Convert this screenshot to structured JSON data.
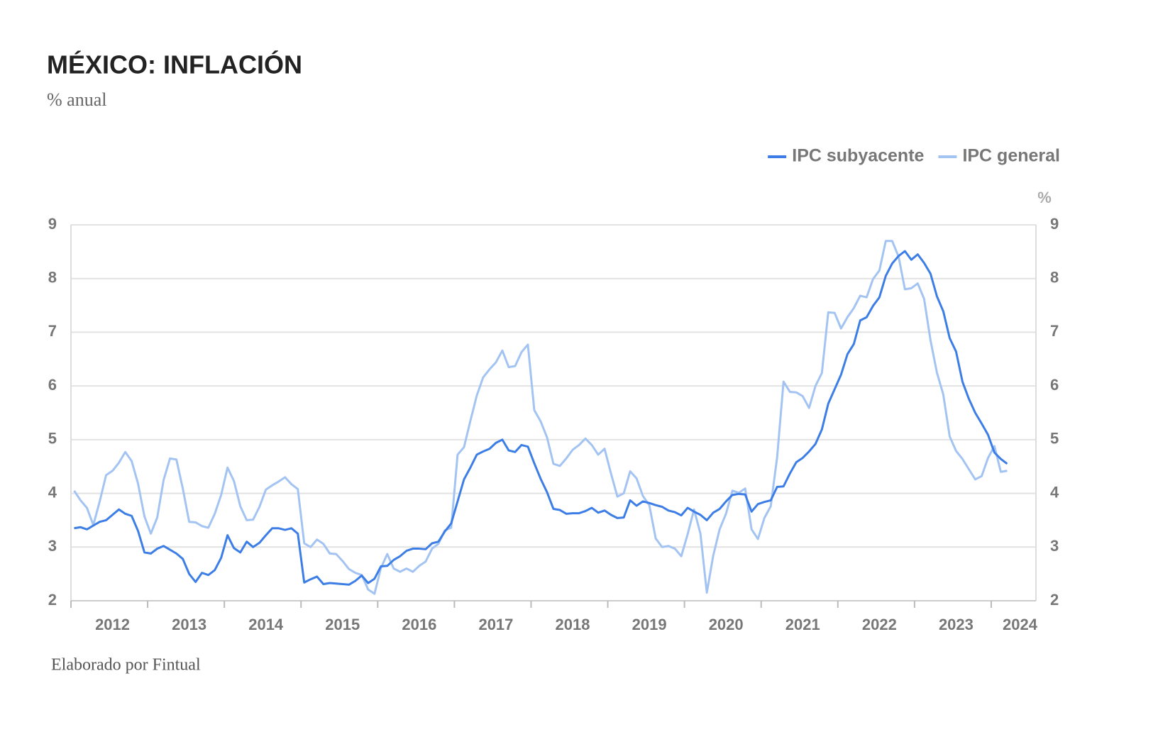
{
  "chart_data": {
    "type": "line",
    "title": "MÉXICO: INFLACIÓN",
    "subtitle": "% anual",
    "source": "Elaborado por Fintual",
    "y2_label": "%",
    "legend": "top-right",
    "grid": true,
    "ylim": [
      2,
      9
    ],
    "yticks": [
      2,
      3,
      4,
      5,
      6,
      7,
      8,
      9
    ],
    "y2lim": [
      2,
      9
    ],
    "y2ticks": [
      2,
      3,
      4,
      5,
      6,
      7,
      8,
      9
    ],
    "categories": [
      null,
      null,
      null,
      null,
      null,
      null,
      "2012",
      null,
      null,
      null,
      null,
      null,
      null,
      null,
      null,
      null,
      null,
      null,
      "2013",
      null,
      null,
      null,
      null,
      null,
      null,
      null,
      null,
      null,
      null,
      null,
      "2014",
      null,
      null,
      null,
      null,
      null,
      null,
      null,
      null,
      null,
      null,
      null,
      "2015",
      null,
      null,
      null,
      null,
      null,
      null,
      null,
      null,
      null,
      null,
      null,
      "2016",
      null,
      null,
      null,
      null,
      null,
      null,
      null,
      null,
      null,
      null,
      null,
      "2017",
      null,
      null,
      null,
      null,
      null,
      null,
      null,
      null,
      null,
      null,
      null,
      "2018",
      null,
      null,
      null,
      null,
      null,
      null,
      null,
      null,
      null,
      null,
      null,
      "2019",
      null,
      null,
      null,
      null,
      null,
      null,
      null,
      null,
      null,
      null,
      null,
      "2020",
      null,
      null,
      null,
      null,
      null,
      null,
      null,
      null,
      null,
      null,
      null,
      "2021",
      null,
      null,
      null,
      null,
      null,
      null,
      null,
      null,
      null,
      null,
      null,
      "2022",
      null,
      null,
      null,
      null,
      null,
      null,
      null,
      null,
      null,
      null,
      null,
      "2023",
      null,
      null,
      null,
      null,
      null,
      null,
      null,
      null,
      null,
      "2024",
      null,
      null
    ],
    "series": [
      {
        "name": "IPC subyacente",
        "color": "#3d7ee6",
        "values": [
          3.35,
          3.37,
          3.33,
          3.4,
          3.47,
          3.5,
          3.6,
          3.7,
          3.62,
          3.58,
          3.3,
          2.9,
          2.88,
          2.97,
          3.02,
          2.95,
          2.88,
          2.78,
          2.5,
          2.35,
          2.52,
          2.48,
          2.57,
          2.8,
          3.22,
          2.98,
          2.9,
          3.1,
          3.0,
          3.08,
          3.22,
          3.35,
          3.35,
          3.32,
          3.35,
          3.25,
          2.34,
          2.4,
          2.45,
          2.31,
          2.33,
          2.32,
          2.31,
          2.3,
          2.37,
          2.47,
          2.33,
          2.41,
          2.64,
          2.65,
          2.76,
          2.83,
          2.93,
          2.97,
          2.97,
          2.96,
          3.07,
          3.1,
          3.29,
          3.44,
          3.85,
          4.26,
          4.48,
          4.72,
          4.78,
          4.83,
          4.94,
          5.0,
          4.8,
          4.77,
          4.9,
          4.87,
          4.56,
          4.27,
          4.02,
          3.71,
          3.69,
          3.62,
          3.63,
          3.63,
          3.67,
          3.73,
          3.64,
          3.68,
          3.6,
          3.54,
          3.55,
          3.87,
          3.77,
          3.85,
          3.82,
          3.78,
          3.75,
          3.68,
          3.65,
          3.59,
          3.73,
          3.66,
          3.6,
          3.5,
          3.64,
          3.71,
          3.85,
          3.97,
          3.99,
          3.98,
          3.66,
          3.8,
          3.84,
          3.87,
          4.12,
          4.13,
          4.37,
          4.58,
          4.66,
          4.78,
          4.92,
          5.19,
          5.67,
          5.94,
          6.21,
          6.59,
          6.78,
          7.22,
          7.28,
          7.49,
          7.65,
          8.05,
          8.28,
          8.42,
          8.51,
          8.35,
          8.45,
          8.29,
          8.09,
          7.67,
          7.39,
          6.89,
          6.64,
          6.08,
          5.76,
          5.5,
          5.3,
          5.09,
          4.76,
          4.64,
          4.55,
          null,
          null,
          null,
          null
        ]
      },
      {
        "name": "IPC general",
        "color": "#a3c4f3",
        "values": [
          4.05,
          3.87,
          3.73,
          3.41,
          3.85,
          4.34,
          4.42,
          4.57,
          4.77,
          4.6,
          4.18,
          3.57,
          3.25,
          3.55,
          4.25,
          4.65,
          4.63,
          4.09,
          3.47,
          3.46,
          3.39,
          3.36,
          3.62,
          3.97,
          4.48,
          4.23,
          3.76,
          3.5,
          3.51,
          3.75,
          4.07,
          4.15,
          4.22,
          4.3,
          4.17,
          4.08,
          3.07,
          3.0,
          3.14,
          3.06,
          2.88,
          2.87,
          2.74,
          2.59,
          2.52,
          2.48,
          2.21,
          2.13,
          2.61,
          2.87,
          2.6,
          2.54,
          2.6,
          2.54,
          2.65,
          2.73,
          2.97,
          3.06,
          3.31,
          3.36,
          4.72,
          4.86,
          5.35,
          5.82,
          6.16,
          6.31,
          6.44,
          6.66,
          6.35,
          6.37,
          6.63,
          6.77,
          5.55,
          5.34,
          5.04,
          4.55,
          4.51,
          4.65,
          4.81,
          4.9,
          5.02,
          4.9,
          4.72,
          4.83,
          4.37,
          3.94,
          4.0,
          4.41,
          4.28,
          3.95,
          3.78,
          3.16,
          3.0,
          3.02,
          2.97,
          2.83,
          3.24,
          3.7,
          3.25,
          2.15,
          2.84,
          3.33,
          3.62,
          4.05,
          4.01,
          4.09,
          3.33,
          3.15,
          3.54,
          3.76,
          4.67,
          6.08,
          5.89,
          5.88,
          5.81,
          5.59,
          6.0,
          6.24,
          7.37,
          7.36,
          7.07,
          7.28,
          7.45,
          7.68,
          7.65,
          7.99,
          8.15,
          8.7,
          8.7,
          8.41,
          7.8,
          7.82,
          7.91,
          7.62,
          6.85,
          6.25,
          5.84,
          5.06,
          4.79,
          4.64,
          4.45,
          4.26,
          4.32,
          4.66,
          4.88,
          4.4,
          4.42,
          null,
          null,
          null,
          null
        ]
      }
    ]
  }
}
